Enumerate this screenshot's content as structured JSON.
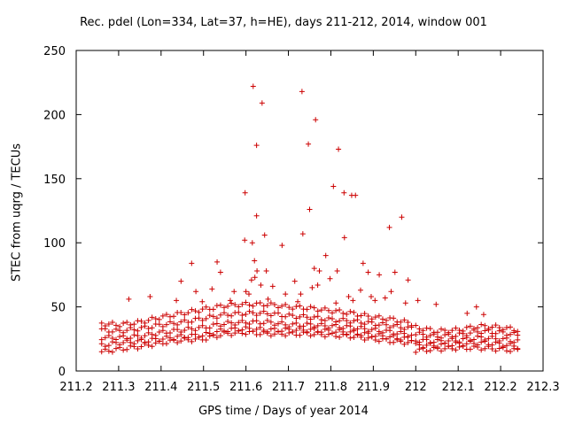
{
  "chart_data": {
    "type": "scatter",
    "title": "Rec. pdel (Lon=334, Lat=37, h=HE), days 211-212, 2014, window 001",
    "xlabel": "GPS time / Days of year 2014",
    "ylabel": "STEC from uqrg / TECUs",
    "xlim": [
      211.2,
      212.3
    ],
    "ylim": [
      0,
      250
    ],
    "x_ticks": [
      "211.2",
      "211.3",
      "211.4",
      "211.5",
      "211.6",
      "211.7",
      "211.8",
      "211.9",
      "212",
      "212.1",
      "212.2",
      "212.3"
    ],
    "y_ticks": [
      "0",
      "50",
      "100",
      "150",
      "200",
      "250"
    ],
    "grid": false,
    "marker": "+",
    "color": "#cc0000",
    "series": [
      {
        "name": "",
        "x": [
          211.617,
          211.732,
          211.638,
          211.764,
          211.625,
          211.747,
          211.818,
          211.806,
          211.598,
          211.831,
          211.858,
          211.849,
          211.75,
          211.625,
          211.967,
          211.597,
          211.938,
          211.644,
          211.734,
          211.832,
          211.615,
          211.685,
          211.788,
          211.62,
          211.626,
          211.761,
          211.876,
          211.773,
          211.472,
          211.532,
          211.815,
          211.648,
          211.888,
          211.914,
          211.951,
          211.982,
          211.798,
          211.54,
          211.621,
          211.613,
          211.715,
          211.447,
          211.769,
          211.635,
          211.663,
          211.756,
          211.87,
          211.942,
          211.482,
          211.6,
          211.52,
          211.572,
          211.607,
          211.693,
          211.729,
          211.842,
          211.895,
          211.928,
          211.374,
          211.324,
          211.436,
          211.497,
          211.563,
          211.652,
          211.722,
          211.812,
          211.852,
          211.904,
          211.976,
          212.005,
          212.048,
          212.121,
          212.143,
          212.16
        ],
        "y": [
          222,
          218,
          209,
          196,
          176,
          177,
          173,
          144,
          139,
          139,
          137,
          137,
          126,
          121,
          120,
          102,
          112,
          106,
          107,
          104,
          100,
          98,
          90,
          86,
          78,
          80,
          84,
          78,
          84,
          85,
          78,
          78,
          77,
          75,
          77,
          71,
          72,
          77,
          73,
          71,
          70,
          70,
          67,
          67,
          66,
          65,
          63,
          62,
          62,
          62,
          64,
          62,
          60,
          60,
          60,
          58,
          58,
          57,
          58,
          56,
          55,
          54,
          55,
          56,
          54,
          53,
          55,
          55,
          53,
          55,
          52,
          45,
          50,
          44
        ]
      }
    ],
    "bands": [
      {
        "x": [
          211.26,
          211.3,
          211.35,
          211.4,
          211.45,
          211.5,
          211.55,
          211.6,
          211.65,
          211.7,
          211.75,
          211.8,
          211.85,
          211.9,
          211.95,
          211.99
        ],
        "y": [
          15,
          17,
          19,
          22,
          24,
          25,
          29,
          30,
          29,
          29,
          29,
          28,
          27,
          25,
          23,
          22
        ]
      },
      {
        "x": [
          211.26,
          211.3,
          211.35,
          211.4,
          211.45,
          211.5,
          211.55,
          211.6,
          211.65,
          211.7,
          211.75,
          211.8,
          211.85,
          211.9,
          211.95,
          211.99
        ],
        "y": [
          20,
          22,
          23,
          25,
          27,
          28,
          32,
          33,
          32,
          32,
          32,
          31,
          30,
          28,
          26,
          25
        ]
      },
      {
        "x": [
          211.26,
          211.3,
          211.35,
          211.4,
          211.45,
          211.5,
          211.55,
          211.6,
          211.65,
          211.7,
          211.75,
          211.8,
          211.85,
          211.9,
          211.95,
          211.99
        ],
        "y": [
          26,
          26,
          27,
          30,
          32,
          34,
          37,
          38,
          38,
          36,
          36,
          35,
          34,
          32,
          30,
          28
        ]
      },
      {
        "x": [
          211.26,
          211.3,
          211.35,
          211.4,
          211.45,
          211.5,
          211.55,
          211.6,
          211.65,
          211.7,
          211.75,
          211.8,
          211.85,
          211.9,
          211.95,
          211.99
        ],
        "y": [
          32,
          31,
          33,
          36,
          38,
          41,
          44,
          45,
          45,
          43,
          42,
          40,
          39,
          37,
          35,
          33
        ]
      },
      {
        "x": [
          211.26,
          211.3,
          211.35,
          211.4,
          211.45,
          211.5,
          211.55,
          211.6,
          211.65,
          211.7,
          211.75,
          211.8,
          211.85,
          211.9,
          211.95,
          211.99
        ],
        "y": [
          37,
          36,
          38,
          42,
          45,
          48,
          51,
          52,
          52,
          50,
          49,
          47,
          45,
          42,
          40,
          37
        ]
      },
      {
        "x": [
          212.0,
          212.05,
          212.1,
          212.15,
          212.2,
          212.24
        ],
        "y": [
          16,
          17,
          18,
          18,
          17,
          16
        ]
      },
      {
        "x": [
          212.0,
          212.05,
          212.1,
          212.15,
          212.2,
          212.24
        ],
        "y": [
          20,
          20,
          21,
          22,
          21,
          19
        ]
      },
      {
        "x": [
          212.0,
          212.05,
          212.1,
          212.15,
          212.2,
          212.24
        ],
        "y": [
          24,
          23,
          24,
          26,
          25,
          23
        ]
      },
      {
        "x": [
          212.0,
          212.05,
          212.1,
          212.15,
          212.2,
          212.24
        ],
        "y": [
          29,
          27,
          28,
          31,
          30,
          28
        ]
      },
      {
        "x": [
          212.0,
          212.05,
          212.1,
          212.15,
          212.2,
          212.24
        ],
        "y": [
          34,
          31,
          32,
          35,
          34,
          32
        ]
      }
    ]
  }
}
